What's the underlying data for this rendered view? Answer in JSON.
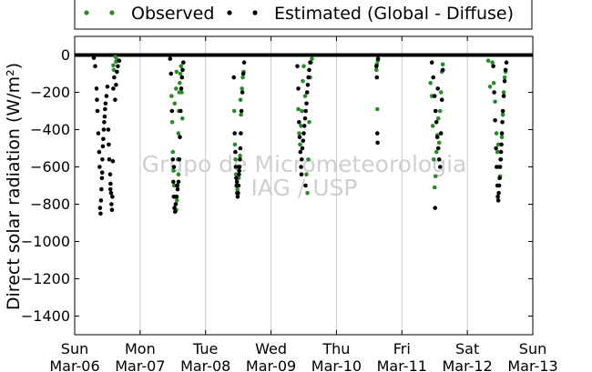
{
  "chart_data": {
    "type": "scatter",
    "ylabel": "Direct solar radiation (W/m²)",
    "ylim": [
      -1500,
      100
    ],
    "yticks": [
      0,
      -200,
      -400,
      -600,
      -800,
      -1000,
      -1200,
      -1400
    ],
    "xlim": [
      "2016-03-06",
      "2016-03-13"
    ],
    "xticks": [
      {
        "date": "2016-03-06",
        "day": "Sun",
        "date_label": "Mar-06"
      },
      {
        "date": "2016-03-07",
        "day": "Mon",
        "date_label": "Mar-07"
      },
      {
        "date": "2016-03-08",
        "day": "Tue",
        "date_label": "Mar-08"
      },
      {
        "date": "2016-03-09",
        "day": "Wed",
        "date_label": "Mar-09"
      },
      {
        "date": "2016-03-10",
        "day": "Thu",
        "date_label": "Mar-10"
      },
      {
        "date": "2016-03-11",
        "day": "Fri",
        "date_label": "Mar-11"
      },
      {
        "date": "2016-03-12",
        "day": "Sat",
        "date_label": "Mar-12"
      },
      {
        "date": "2016-03-13",
        "day": "Sun",
        "date_label": "Mar-13"
      }
    ],
    "grid": "vertical",
    "legend_placement": "top",
    "watermark": [
      "Grupo de Micrometeorologia",
      "IAG / USP"
    ],
    "series": [
      {
        "name": "Observed",
        "color": "#2a8a2a",
        "points": [
          [
            "2016-03-06T14:10",
            -55
          ],
          [
            "2016-03-06T14:20",
            -80
          ],
          [
            "2016-03-06T15:00",
            -10
          ],
          [
            "2016-03-06T15:10",
            -35
          ],
          [
            "2016-03-06T15:30",
            -25
          ],
          [
            "2016-03-07T11:30",
            -220
          ],
          [
            "2016-03-07T11:45",
            -360
          ],
          [
            "2016-03-07T12:00",
            -520
          ],
          [
            "2016-03-07T12:15",
            -620
          ],
          [
            "2016-03-07T12:30",
            -700
          ],
          [
            "2016-03-07T12:45",
            -760
          ],
          [
            "2016-03-07T13:00",
            -800
          ],
          [
            "2016-03-07T13:15",
            -830
          ],
          [
            "2016-03-07T13:30",
            -780
          ],
          [
            "2016-03-07T13:40",
            -700
          ],
          [
            "2016-03-07T13:50",
            -560
          ],
          [
            "2016-03-07T14:00",
            -420
          ],
          [
            "2016-03-07T14:10",
            -300
          ],
          [
            "2016-03-07T14:20",
            -200
          ],
          [
            "2016-03-07T14:30",
            -150
          ],
          [
            "2016-03-07T14:45",
            -100
          ],
          [
            "2016-03-07T15:00",
            -60
          ],
          [
            "2016-03-07T15:15",
            -200
          ],
          [
            "2016-03-07T15:30",
            -340
          ],
          [
            "2016-03-07T12:40",
            -260
          ],
          [
            "2016-03-07T13:10",
            -180
          ],
          [
            "2016-03-07T13:20",
            -90
          ],
          [
            "2016-03-07T14:05",
            -640
          ],
          [
            "2016-03-08T10:30",
            -300
          ],
          [
            "2016-03-08T10:45",
            -480
          ],
          [
            "2016-03-08T11:00",
            -560
          ],
          [
            "2016-03-08T11:10",
            -640
          ],
          [
            "2016-03-08T11:20",
            -700
          ],
          [
            "2016-03-08T11:40",
            -720
          ],
          [
            "2016-03-08T12:10",
            -660
          ],
          [
            "2016-03-08T12:40",
            -540
          ],
          [
            "2016-03-08T13:00",
            -320
          ],
          [
            "2016-03-08T13:20",
            -180
          ],
          [
            "2016-03-08T13:40",
            -120
          ],
          [
            "2016-03-08T14:00",
            -90
          ],
          [
            "2016-03-08T12:50",
            -240
          ],
          [
            "2016-03-08T11:55",
            -600
          ],
          [
            "2016-03-09T10:00",
            -290
          ],
          [
            "2016-03-09T10:20",
            -420
          ],
          [
            "2016-03-09T10:40",
            -480
          ],
          [
            "2016-03-09T11:00",
            -380
          ],
          [
            "2016-03-09T11:20",
            -300
          ],
          [
            "2016-03-09T11:40",
            -140
          ],
          [
            "2016-03-09T12:00",
            -60
          ],
          [
            "2016-03-09T12:30",
            -220
          ],
          [
            "2016-03-09T13:00",
            -640
          ],
          [
            "2016-03-09T13:20",
            -740
          ],
          [
            "2016-03-09T13:40",
            -560
          ],
          [
            "2016-03-09T14:00",
            -360
          ],
          [
            "2016-03-09T14:20",
            -120
          ],
          [
            "2016-03-09T14:40",
            -40
          ],
          [
            "2016-03-09T15:00",
            -20
          ],
          [
            "2016-03-10T14:40",
            -80
          ],
          [
            "2016-03-10T14:50",
            -50
          ],
          [
            "2016-03-10T15:00",
            -290
          ],
          [
            "2016-03-10T15:10",
            -30
          ],
          [
            "2016-03-11T10:30",
            -150
          ],
          [
            "2016-03-11T11:00",
            -220
          ],
          [
            "2016-03-11T11:20",
            -380
          ],
          [
            "2016-03-11T11:40",
            -560
          ],
          [
            "2016-03-11T12:00",
            -710
          ],
          [
            "2016-03-11T12:20",
            -650
          ],
          [
            "2016-03-11T12:40",
            -520
          ],
          [
            "2016-03-11T13:00",
            -430
          ],
          [
            "2016-03-11T13:20",
            -340
          ],
          [
            "2016-03-11T13:40",
            -470
          ],
          [
            "2016-03-11T14:00",
            -300
          ],
          [
            "2016-03-11T14:20",
            -200
          ],
          [
            "2016-03-11T14:40",
            -90
          ],
          [
            "2016-03-11T15:00",
            -50
          ],
          [
            "2016-03-12T07:40",
            -30
          ],
          [
            "2016-03-12T08:20",
            -170
          ],
          [
            "2016-03-12T09:10",
            -40
          ],
          [
            "2016-03-12T09:40",
            -150
          ],
          [
            "2016-03-12T10:10",
            -250
          ],
          [
            "2016-03-12T10:40",
            -420
          ],
          [
            "2016-03-12T11:00",
            -520
          ],
          [
            "2016-03-12T11:20",
            -480
          ],
          [
            "2016-03-12T11:40",
            -600
          ],
          [
            "2016-03-12T12:00",
            -650
          ],
          [
            "2016-03-12T12:20",
            -560
          ],
          [
            "2016-03-12T12:40",
            -440
          ],
          [
            "2016-03-12T13:00",
            -320
          ],
          [
            "2016-03-12T13:20",
            -200
          ],
          [
            "2016-03-12T13:40",
            -120
          ],
          [
            "2016-03-12T14:00",
            -90
          ]
        ]
      },
      {
        "name": "Estimated (Global - Diffuse)",
        "color": "#000000",
        "points": [
          [
            "2016-03-06T07:00",
            -15
          ],
          [
            "2016-03-06T07:30",
            -60
          ],
          [
            "2016-03-06T08:00",
            -180
          ],
          [
            "2016-03-06T08:20",
            -300
          ],
          [
            "2016-03-06T08:40",
            -420
          ],
          [
            "2016-03-06T09:00",
            -520
          ],
          [
            "2016-03-06T09:10",
            -600
          ],
          [
            "2016-03-06T09:20",
            -820
          ],
          [
            "2016-03-06T09:30",
            -850
          ],
          [
            "2016-03-06T09:40",
            -780
          ],
          [
            "2016-03-06T09:50",
            -720
          ],
          [
            "2016-03-06T10:00",
            -660
          ],
          [
            "2016-03-06T10:10",
            -560
          ],
          [
            "2016-03-06T10:20",
            -490
          ],
          [
            "2016-03-06T10:30",
            -450
          ],
          [
            "2016-03-06T10:40",
            -400
          ],
          [
            "2016-03-06T10:50",
            -360
          ],
          [
            "2016-03-06T11:00",
            -330
          ],
          [
            "2016-03-06T11:20",
            -260
          ],
          [
            "2016-03-06T11:40",
            -220
          ],
          [
            "2016-03-06T12:00",
            -170
          ],
          [
            "2016-03-06T12:20",
            -400
          ],
          [
            "2016-03-06T12:40",
            -560
          ],
          [
            "2016-03-06T13:00",
            -640
          ],
          [
            "2016-03-06T13:10",
            -690
          ],
          [
            "2016-03-06T13:20",
            -740
          ],
          [
            "2016-03-06T13:30",
            -800
          ],
          [
            "2016-03-06T13:40",
            -830
          ],
          [
            "2016-03-06T13:50",
            -760
          ],
          [
            "2016-03-06T14:00",
            -570
          ],
          [
            "2016-03-06T14:10",
            -180
          ],
          [
            "2016-03-06T14:30",
            -120
          ],
          [
            "2016-03-06T14:50",
            -240
          ],
          [
            "2016-03-06T15:10",
            -160
          ],
          [
            "2016-03-06T15:30",
            -90
          ],
          [
            "2016-03-06T15:50",
            -60
          ],
          [
            "2016-03-06T16:20",
            -30
          ],
          [
            "2016-03-06T08:10",
            -240
          ],
          [
            "2016-03-06T10:05",
            -630
          ],
          [
            "2016-03-06T11:10",
            -290
          ],
          [
            "2016-03-06T12:30",
            -480
          ],
          [
            "2016-03-06T13:05",
            -720
          ],
          [
            "2016-03-07T11:00",
            -20
          ],
          [
            "2016-03-07T11:20",
            -100
          ],
          [
            "2016-03-07T11:40",
            -300
          ],
          [
            "2016-03-07T12:00",
            -560
          ],
          [
            "2016-03-07T12:10",
            -680
          ],
          [
            "2016-03-07T12:20",
            -760
          ],
          [
            "2016-03-07T12:35",
            -820
          ],
          [
            "2016-03-07T12:50",
            -840
          ],
          [
            "2016-03-07T13:05",
            -800
          ],
          [
            "2016-03-07T13:25",
            -760
          ],
          [
            "2016-03-07T13:45",
            -720
          ],
          [
            "2016-03-07T14:05",
            -680
          ],
          [
            "2016-03-07T14:20",
            -560
          ],
          [
            "2016-03-07T14:35",
            -440
          ],
          [
            "2016-03-07T14:50",
            -300
          ],
          [
            "2016-03-07T15:05",
            -180
          ],
          [
            "2016-03-07T15:20",
            -120
          ],
          [
            "2016-03-07T15:35",
            -80
          ],
          [
            "2016-03-07T15:50",
            -40
          ],
          [
            "2016-03-07T12:25",
            -600
          ],
          [
            "2016-03-07T13:35",
            -700
          ],
          [
            "2016-03-08T10:20",
            -120
          ],
          [
            "2016-03-08T10:40",
            -420
          ],
          [
            "2016-03-08T10:55",
            -520
          ],
          [
            "2016-03-08T11:05",
            -600
          ],
          [
            "2016-03-08T11:15",
            -660
          ],
          [
            "2016-03-08T11:25",
            -700
          ],
          [
            "2016-03-08T11:35",
            -740
          ],
          [
            "2016-03-08T11:45",
            -760
          ],
          [
            "2016-03-08T11:55",
            -740
          ],
          [
            "2016-03-08T12:05",
            -700
          ],
          [
            "2016-03-08T12:15",
            -640
          ],
          [
            "2016-03-08T12:25",
            -600
          ],
          [
            "2016-03-08T12:35",
            -560
          ],
          [
            "2016-03-08T12:45",
            -500
          ],
          [
            "2016-03-08T12:55",
            -420
          ],
          [
            "2016-03-08T13:10",
            -300
          ],
          [
            "2016-03-08T13:30",
            -200
          ],
          [
            "2016-03-08T13:50",
            -100
          ],
          [
            "2016-03-08T14:10",
            -40
          ],
          [
            "2016-03-08T11:30",
            -680
          ],
          [
            "2016-03-08T12:20",
            -620
          ],
          [
            "2016-03-09T09:40",
            -60
          ],
          [
            "2016-03-09T10:00",
            -180
          ],
          [
            "2016-03-09T10:15",
            -360
          ],
          [
            "2016-03-09T10:30",
            -440
          ],
          [
            "2016-03-09T10:45",
            -520
          ],
          [
            "2016-03-09T11:00",
            -600
          ],
          [
            "2016-03-09T11:15",
            -560
          ],
          [
            "2016-03-09T11:30",
            -500
          ],
          [
            "2016-03-09T11:45",
            -460
          ],
          [
            "2016-03-09T12:00",
            -420
          ],
          [
            "2016-03-09T12:15",
            -380
          ],
          [
            "2016-03-09T12:30",
            -340
          ],
          [
            "2016-03-09T12:45",
            -300
          ],
          [
            "2016-03-09T13:00",
            -260
          ],
          [
            "2016-03-09T13:15",
            -200
          ],
          [
            "2016-03-09T13:30",
            -160
          ],
          [
            "2016-03-09T13:45",
            -120
          ],
          [
            "2016-03-09T14:00",
            -80
          ],
          [
            "2016-03-09T14:20",
            -40
          ],
          [
            "2016-03-09T11:10",
            -640
          ],
          [
            "2016-03-09T12:40",
            -700
          ],
          [
            "2016-03-10T14:40",
            -60
          ],
          [
            "2016-03-10T14:50",
            -120
          ],
          [
            "2016-03-10T15:00",
            -420
          ],
          [
            "2016-03-10T15:05",
            -470
          ],
          [
            "2016-03-10T15:15",
            -20
          ],
          [
            "2016-03-11T11:00",
            -40
          ],
          [
            "2016-03-11T11:30",
            -120
          ],
          [
            "2016-03-11T12:00",
            -220
          ],
          [
            "2016-03-11T12:20",
            -300
          ],
          [
            "2016-03-11T12:40",
            -360
          ],
          [
            "2016-03-11T13:00",
            -440
          ],
          [
            "2016-03-11T13:20",
            -500
          ],
          [
            "2016-03-11T13:40",
            -560
          ],
          [
            "2016-03-11T14:00",
            -600
          ],
          [
            "2016-03-11T14:20",
            -420
          ],
          [
            "2016-03-11T14:40",
            -240
          ],
          [
            "2016-03-11T15:00",
            -80
          ],
          [
            "2016-03-11T12:10",
            -820
          ],
          [
            "2016-03-11T13:10",
            -180
          ],
          [
            "2016-03-12T09:30",
            -60
          ],
          [
            "2016-03-12T09:50",
            -200
          ],
          [
            "2016-03-12T10:10",
            -350
          ],
          [
            "2016-03-12T10:30",
            -500
          ],
          [
            "2016-03-12T10:45",
            -600
          ],
          [
            "2016-03-12T11:00",
            -700
          ],
          [
            "2016-03-12T11:10",
            -760
          ],
          [
            "2016-03-12T11:20",
            -780
          ],
          [
            "2016-03-12T11:30",
            -740
          ],
          [
            "2016-03-12T11:40",
            -700
          ],
          [
            "2016-03-12T11:50",
            -660
          ],
          [
            "2016-03-12T12:00",
            -600
          ],
          [
            "2016-03-12T12:10",
            -560
          ],
          [
            "2016-03-12T12:20",
            -520
          ],
          [
            "2016-03-12T12:30",
            -480
          ],
          [
            "2016-03-12T12:40",
            -420
          ],
          [
            "2016-03-12T12:50",
            -360
          ],
          [
            "2016-03-12T13:00",
            -300
          ],
          [
            "2016-03-12T13:20",
            -220
          ],
          [
            "2016-03-12T13:40",
            -140
          ],
          [
            "2016-03-12T14:00",
            -80
          ],
          [
            "2016-03-12T14:20",
            -40
          ]
        ]
      }
    ]
  }
}
